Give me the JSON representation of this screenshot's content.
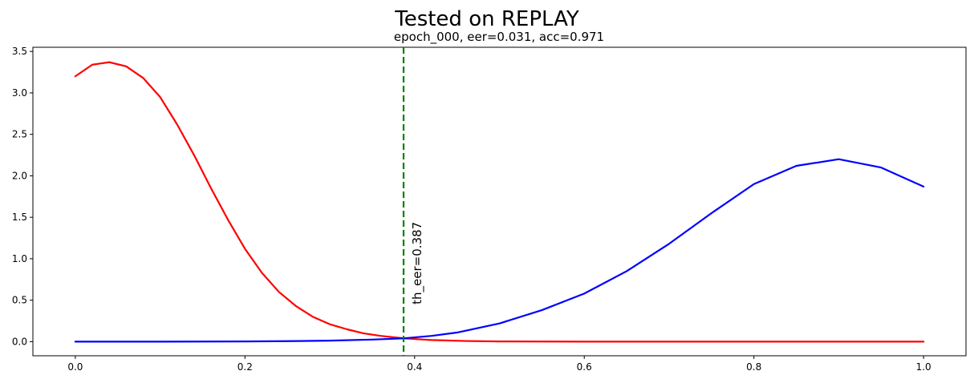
{
  "chart_data": {
    "type": "line",
    "title": "Tested on REPLAY",
    "subtitle": "epoch_000, eer=0.031, acc=0.971",
    "xlim": [
      -0.05,
      1.05
    ],
    "ylim": [
      -0.17,
      3.55
    ],
    "x_ticks": [
      0.0,
      0.2,
      0.4,
      0.6,
      0.8,
      1.0
    ],
    "x_tick_labels": [
      "0.0",
      "0.2",
      "0.4",
      "0.6",
      "0.8",
      "1.0"
    ],
    "y_ticks": [
      0.0,
      0.5,
      1.0,
      1.5,
      2.0,
      2.5,
      3.0,
      3.5
    ],
    "y_tick_labels": [
      "0.0",
      "0.5",
      "1.0",
      "1.5",
      "2.0",
      "2.5",
      "3.0",
      "3.5"
    ],
    "grid": false,
    "series": [
      {
        "color": "#ff0000",
        "x": [
          0.0,
          0.02,
          0.04,
          0.06,
          0.08,
          0.1,
          0.12,
          0.14,
          0.16,
          0.18,
          0.2,
          0.22,
          0.24,
          0.26,
          0.28,
          0.3,
          0.32,
          0.34,
          0.36,
          0.387,
          0.42,
          0.46,
          0.5,
          0.6,
          0.7,
          0.8,
          0.9,
          1.0
        ],
        "y": [
          3.2,
          3.34,
          3.37,
          3.32,
          3.18,
          2.95,
          2.62,
          2.25,
          1.85,
          1.47,
          1.12,
          0.83,
          0.6,
          0.43,
          0.3,
          0.21,
          0.15,
          0.1,
          0.07,
          0.04,
          0.02,
          0.008,
          0.003,
          0.0,
          0.0,
          0.0,
          0.0,
          0.0
        ]
      },
      {
        "color": "#0000ff",
        "x": [
          0.0,
          0.1,
          0.2,
          0.25,
          0.3,
          0.35,
          0.387,
          0.42,
          0.45,
          0.5,
          0.55,
          0.6,
          0.65,
          0.7,
          0.75,
          0.8,
          0.85,
          0.9,
          0.95,
          1.0
        ],
        "y": [
          0.0,
          0.0,
          0.003,
          0.006,
          0.012,
          0.025,
          0.04,
          0.07,
          0.11,
          0.22,
          0.38,
          0.58,
          0.85,
          1.18,
          1.55,
          1.9,
          2.12,
          2.2,
          2.1,
          1.87
        ]
      }
    ],
    "vline": {
      "x": 0.387,
      "color": "#008000",
      "style": "dashed",
      "label": "th_eer=0.387"
    }
  }
}
